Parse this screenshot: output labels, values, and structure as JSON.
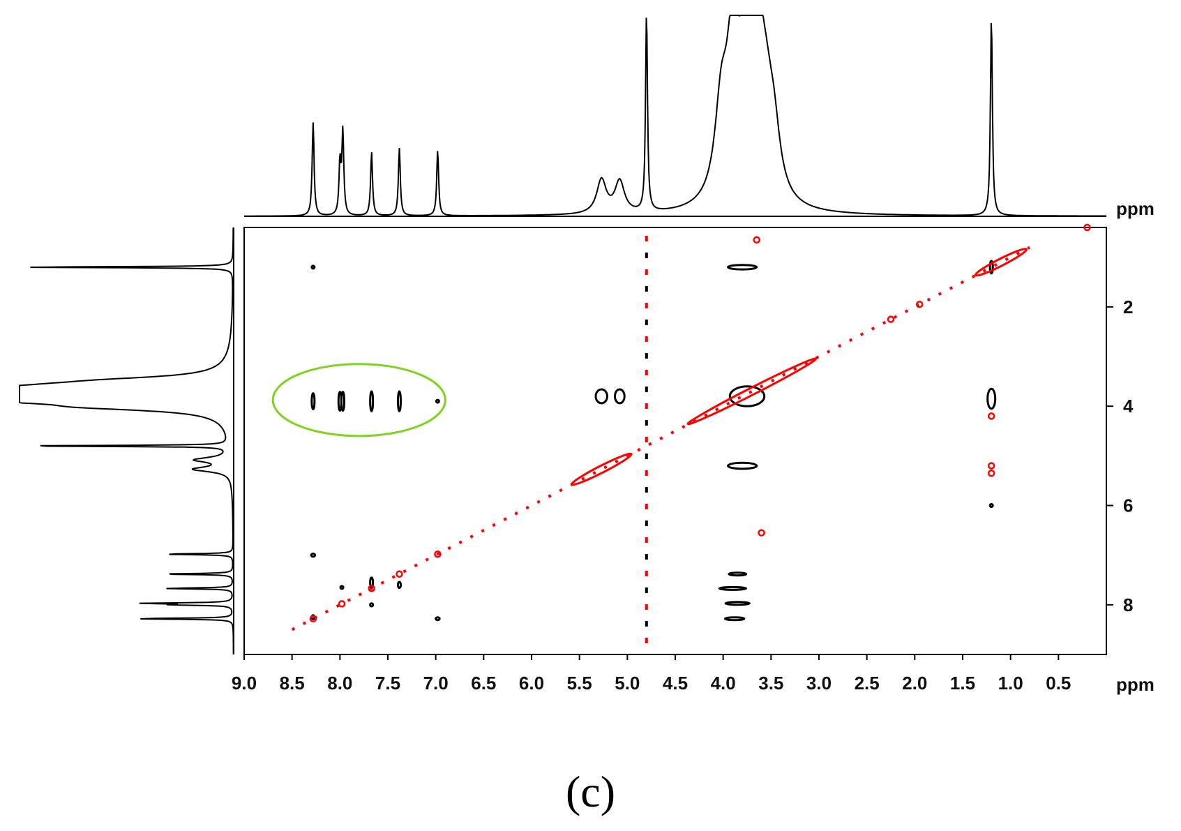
{
  "figure": {
    "caption": "(c)",
    "x_unit": "ppm",
    "top_unit": "ppm",
    "colors": {
      "positive": "#000000",
      "negative": "#ff0000",
      "highlight": "#7ed321"
    }
  },
  "chart_data": {
    "type": "scatter",
    "subtype": "2D NMR contour map with 1D projections",
    "xlabel": "ppm",
    "ylabel": "",
    "xlim": [
      9.0,
      0.0
    ],
    "ylim": [
      0.4,
      9.0
    ],
    "x_axis_reversed": true,
    "y_axis_position": "right",
    "x_ticks": [
      "9.0",
      "8.5",
      "8.0",
      "7.5",
      "7.0",
      "6.5",
      "6.0",
      "5.5",
      "5.0",
      "4.5",
      "4.0",
      "3.5",
      "3.0",
      "2.5",
      "2.0",
      "1.5",
      "1.0",
      "0.5"
    ],
    "x_tick_values": [
      9.0,
      8.5,
      8.0,
      7.5,
      7.0,
      6.5,
      6.0,
      5.5,
      5.0,
      4.5,
      4.0,
      3.5,
      3.0,
      2.5,
      2.0,
      1.5,
      1.0,
      0.5
    ],
    "y_ticks": [
      "2",
      "4",
      "6",
      "8"
    ],
    "y_tick_values": [
      2,
      4,
      6,
      8
    ],
    "projection_1d": {
      "peaks": [
        {
          "ppm": 8.28,
          "intensity": 0.47
        },
        {
          "ppm": 8.0,
          "intensity": 0.26
        },
        {
          "ppm": 7.97,
          "intensity": 0.42
        },
        {
          "ppm": 7.67,
          "intensity": 0.32
        },
        {
          "ppm": 7.38,
          "intensity": 0.34
        },
        {
          "ppm": 6.98,
          "intensity": 0.33
        },
        {
          "ppm": 5.27,
          "intensity": 0.17
        },
        {
          "ppm": 5.08,
          "intensity": 0.16
        },
        {
          "ppm": 4.8,
          "intensity": 1.0
        },
        {
          "ppm": 4.02,
          "intensity": 0.43
        },
        {
          "ppm": 3.9,
          "intensity": 0.72
        },
        {
          "ppm": 3.78,
          "intensity": 0.49
        },
        {
          "ppm": 3.65,
          "intensity": 0.88
        },
        {
          "ppm": 3.55,
          "intensity": 0.32
        },
        {
          "ppm": 3.47,
          "intensity": 0.28
        },
        {
          "ppm": 1.2,
          "intensity": 1.0
        }
      ]
    },
    "series": [
      {
        "color": "#000000",
        "points": [
          {
            "x": 8.28,
            "y": 1.2,
            "w": 0.02,
            "h": 0.02
          },
          {
            "x": 8.28,
            "y": 3.9,
            "w": 0.02,
            "h": 0.32
          },
          {
            "x": 8.0,
            "y": 3.9,
            "w": 0.03,
            "h": 0.38
          },
          {
            "x": 7.97,
            "y": 3.9,
            "w": 0.03,
            "h": 0.38
          },
          {
            "x": 7.67,
            "y": 3.9,
            "w": 0.02,
            "h": 0.4
          },
          {
            "x": 7.38,
            "y": 3.9,
            "w": 0.02,
            "h": 0.4
          },
          {
            "x": 6.98,
            "y": 3.9,
            "w": 0.02,
            "h": 0.04
          },
          {
            "x": 5.27,
            "y": 3.8,
            "w": 0.12,
            "h": 0.28
          },
          {
            "x": 5.08,
            "y": 3.8,
            "w": 0.1,
            "h": 0.28
          },
          {
            "x": 3.8,
            "y": 1.2,
            "w": 0.3,
            "h": 0.09
          },
          {
            "x": 3.75,
            "y": 3.8,
            "w": 0.36,
            "h": 0.4
          },
          {
            "x": 3.8,
            "y": 5.2,
            "w": 0.3,
            "h": 0.12
          },
          {
            "x": 1.2,
            "y": 1.2,
            "w": 0.03,
            "h": 0.25
          },
          {
            "x": 1.2,
            "y": 3.85,
            "w": 0.08,
            "h": 0.4
          },
          {
            "x": 1.2,
            "y": 6.0,
            "w": 0.02,
            "h": 0.03
          },
          {
            "x": 8.28,
            "y": 7.0,
            "w": 0.04,
            "h": 0.06
          },
          {
            "x": 8.28,
            "y": 8.25,
            "w": 0.03,
            "h": 0.08
          },
          {
            "x": 7.98,
            "y": 7.65,
            "w": 0.03,
            "h": 0.05
          },
          {
            "x": 7.67,
            "y": 7.55,
            "w": 0.03,
            "h": 0.2
          },
          {
            "x": 7.67,
            "y": 8.0,
            "w": 0.03,
            "h": 0.06
          },
          {
            "x": 7.38,
            "y": 7.6,
            "w": 0.03,
            "h": 0.12
          },
          {
            "x": 6.98,
            "y": 8.28,
            "w": 0.04,
            "h": 0.04
          },
          {
            "x": 3.85,
            "y": 7.38,
            "w": 0.18,
            "h": 0.03
          },
          {
            "x": 3.9,
            "y": 7.67,
            "w": 0.28,
            "h": 0.03
          },
          {
            "x": 3.85,
            "y": 7.97,
            "w": 0.25,
            "h": 0.04
          },
          {
            "x": 3.88,
            "y": 8.28,
            "w": 0.2,
            "h": 0.03
          }
        ]
      },
      {
        "color": "#ff0000",
        "diagonal": [
          [
            8.5,
            8.5
          ],
          [
            6.8,
            6.8
          ],
          [
            5.45,
            5.45
          ],
          [
            4.8,
            4.8
          ],
          [
            4.6,
            4.6
          ],
          [
            3.1,
            3.1
          ],
          [
            2.8,
            2.8
          ],
          [
            1.6,
            1.6
          ],
          [
            0.8,
            0.8
          ]
        ],
        "points": [
          {
            "x": 8.28,
            "y": 8.28
          },
          {
            "x": 7.98,
            "y": 7.98
          },
          {
            "x": 7.67,
            "y": 7.67
          },
          {
            "x": 7.38,
            "y": 7.38
          },
          {
            "x": 6.98,
            "y": 6.98
          },
          {
            "x": 3.65,
            "y": 0.65
          },
          {
            "x": 3.6,
            "y": 6.55
          },
          {
            "x": 2.25,
            "y": 2.25
          },
          {
            "x": 1.95,
            "y": 1.95
          },
          {
            "x": 1.2,
            "y": 5.2
          },
          {
            "x": 1.2,
            "y": 5.35
          },
          {
            "x": 1.2,
            "y": 4.2
          },
          {
            "x": 0.2,
            "y": 0.4
          }
        ]
      }
    ],
    "water_line_ppm": 4.8,
    "annotations": [
      {
        "type": "ellipse",
        "color": "#7ed321",
        "x_range": [
          8.7,
          6.9
        ],
        "y_range": [
          3.15,
          4.6
        ]
      }
    ]
  }
}
